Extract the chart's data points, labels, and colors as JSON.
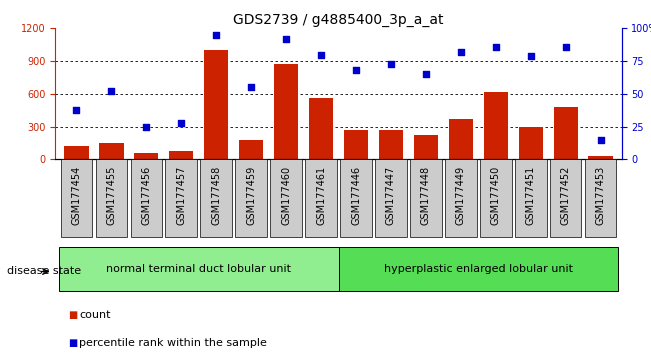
{
  "title": "GDS2739 / g4885400_3p_a_at",
  "samples": [
    "GSM177454",
    "GSM177455",
    "GSM177456",
    "GSM177457",
    "GSM177458",
    "GSM177459",
    "GSM177460",
    "GSM177461",
    "GSM177446",
    "GSM177447",
    "GSM177448",
    "GSM177449",
    "GSM177450",
    "GSM177451",
    "GSM177452",
    "GSM177453"
  ],
  "bar_values": [
    120,
    145,
    55,
    75,
    1000,
    175,
    870,
    560,
    270,
    265,
    220,
    370,
    620,
    295,
    480,
    30
  ],
  "dot_values_pct": [
    38,
    52,
    25,
    28,
    95,
    55,
    92,
    80,
    68,
    73,
    65,
    82,
    86,
    79,
    86,
    15
  ],
  "bar_color": "#cc2200",
  "dot_color": "#0000cc",
  "ylim_left": [
    0,
    1200
  ],
  "ylim_right": [
    0,
    100
  ],
  "yticks_left": [
    0,
    300,
    600,
    900,
    1200
  ],
  "yticks_right": [
    0,
    25,
    50,
    75,
    100
  ],
  "group1_count": 8,
  "group1_label": "normal terminal duct lobular unit",
  "group2_label": "hyperplastic enlarged lobular unit",
  "group1_color": "#90ee90",
  "group2_color": "#55dd55",
  "disease_state_label": "disease state",
  "legend_bar_label": "count",
  "legend_dot_label": "percentile rank within the sample",
  "tick_bg_color": "#cccccc",
  "grid_color": "#888888",
  "right_axis_color": "#0000cc",
  "left_axis_color": "#cc2200",
  "title_fontsize": 10,
  "tick_fontsize": 7,
  "label_fontsize": 8
}
